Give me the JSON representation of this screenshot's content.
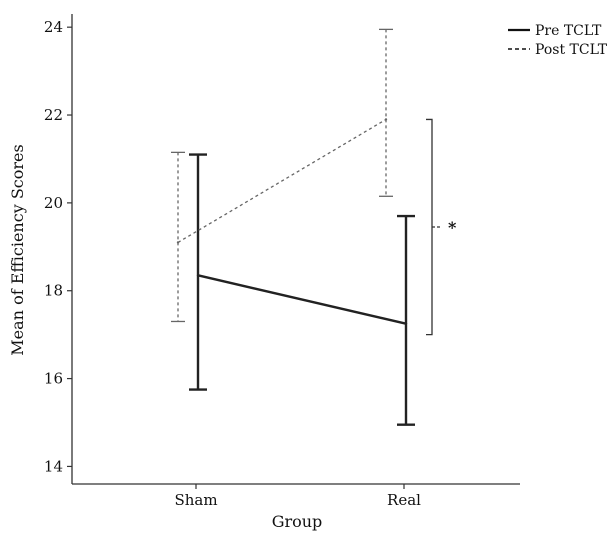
{
  "chart_data": {
    "type": "line",
    "categories": [
      "Sham",
      "Real"
    ],
    "xlabel": "Group",
    "ylabel": "Mean of Efficiency Scores",
    "ylim": [
      13.6,
      24.3
    ],
    "yticks": [
      14,
      16,
      18,
      20,
      22,
      24
    ],
    "grid": false,
    "legend_position": "top-right",
    "series": [
      {
        "name": "Pre TCLT",
        "style": "solid",
        "color": "#222222",
        "values": [
          18.35,
          17.25
        ],
        "error_low": [
          15.75,
          14.95
        ],
        "error_high": [
          21.1,
          19.7
        ]
      },
      {
        "name": "Post TCLT",
        "style": "dashed",
        "color": "#666666",
        "values": [
          19.1,
          21.9
        ],
        "error_low": [
          17.3,
          20.15
        ],
        "error_high": [
          21.15,
          23.95
        ]
      }
    ],
    "annotation": {
      "label": "*",
      "category": "Real",
      "y_range": [
        17.0,
        21.9
      ]
    }
  }
}
